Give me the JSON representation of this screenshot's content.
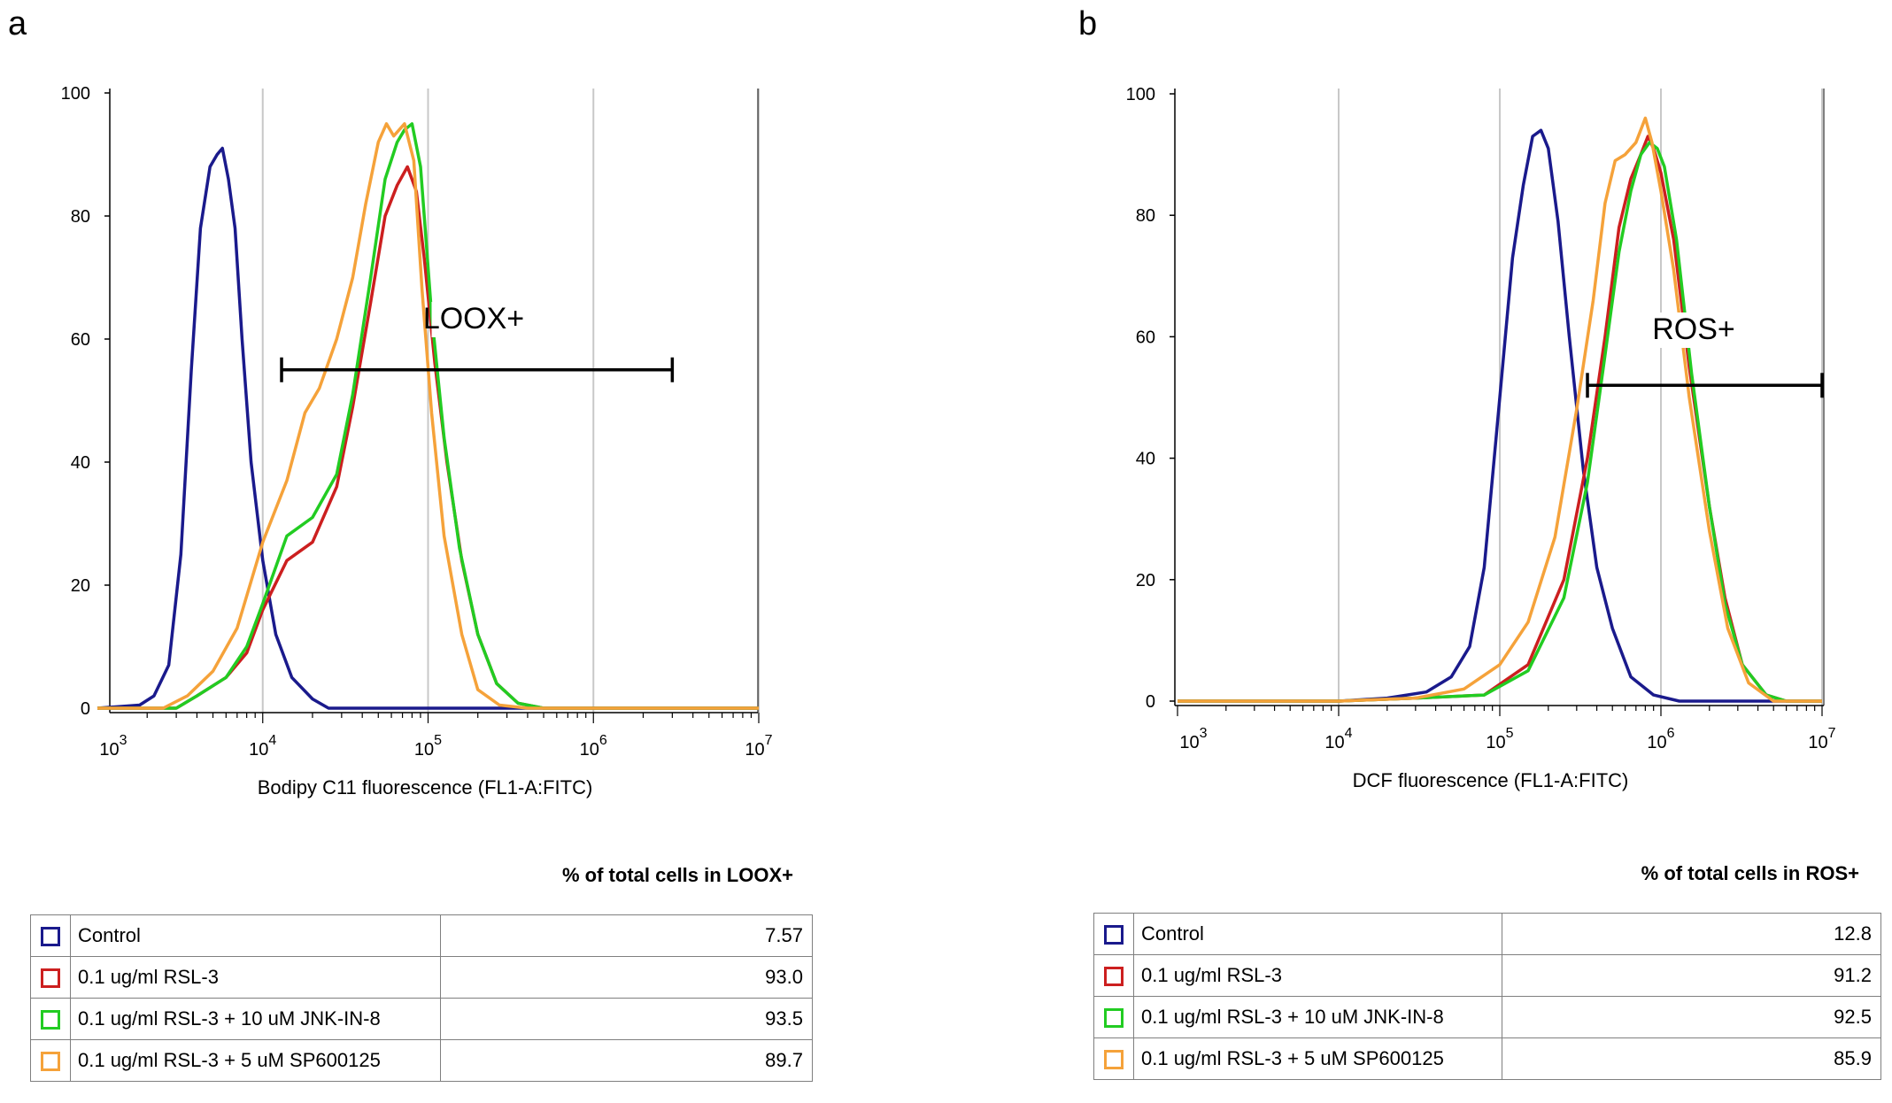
{
  "chart_data": [
    {
      "panel": "a",
      "type": "line",
      "xlabel": "Bodipy C11 fluorescence  (FL1-A:FITC)",
      "ylabel": "",
      "xscale": "log",
      "xlim": [
        1000,
        10000000
      ],
      "ylim": [
        0,
        100
      ],
      "yticks": [
        "0",
        "20",
        "40",
        "60",
        "80",
        "100"
      ],
      "xticks": [
        {
          "base": "10",
          "exp": "3"
        },
        {
          "base": "10",
          "exp": "4"
        },
        {
          "base": "10",
          "exp": "5"
        },
        {
          "base": "10",
          "exp": "6"
        },
        {
          "base": "10",
          "exp": "7"
        }
      ],
      "gate": {
        "label": "LOOX+",
        "from": 13000,
        "to": 3000000,
        "y": 55
      },
      "table_title": "% of total cells in LOOX+",
      "series": [
        {
          "name": "Control",
          "color": "#1a1a8c",
          "value": "7.57",
          "points": [
            [
              1000,
              0
            ],
            [
              1800,
              0.5
            ],
            [
              2200,
              2
            ],
            [
              2700,
              7
            ],
            [
              3200,
              25
            ],
            [
              3700,
              55
            ],
            [
              4200,
              78
            ],
            [
              4800,
              88
            ],
            [
              5300,
              90
            ],
            [
              5700,
              91
            ],
            [
              6200,
              86
            ],
            [
              6800,
              78
            ],
            [
              7500,
              60
            ],
            [
              8500,
              40
            ],
            [
              10000,
              24
            ],
            [
              12000,
              12
            ],
            [
              15000,
              5
            ],
            [
              20000,
              1.5
            ],
            [
              25000,
              0
            ],
            [
              10000000,
              0
            ]
          ]
        },
        {
          "name": "0.1 ug/ml RSL-3",
          "color": "#cc1f1f",
          "value": "93.0",
          "points": [
            [
              1000,
              0
            ],
            [
              3000,
              0
            ],
            [
              4000,
              2
            ],
            [
              6000,
              5
            ],
            [
              8000,
              9
            ],
            [
              10000,
              16
            ],
            [
              14000,
              24
            ],
            [
              20000,
              27
            ],
            [
              28000,
              36
            ],
            [
              35000,
              49
            ],
            [
              45000,
              66
            ],
            [
              55000,
              80
            ],
            [
              65000,
              85
            ],
            [
              75000,
              88
            ],
            [
              85000,
              84
            ],
            [
              95000,
              73
            ],
            [
              110000,
              56
            ],
            [
              130000,
              40
            ],
            [
              160000,
              24
            ],
            [
              200000,
              12
            ],
            [
              260000,
              4
            ],
            [
              350000,
              0.8
            ],
            [
              500000,
              0
            ],
            [
              10000000,
              0
            ]
          ]
        },
        {
          "name": "0.1 ug/ml RSL-3 + 10 uM JNK-IN-8",
          "color": "#22cc22",
          "value": "93.5",
          "points": [
            [
              1000,
              0
            ],
            [
              3000,
              0
            ],
            [
              4000,
              2
            ],
            [
              6000,
              5
            ],
            [
              8000,
              10
            ],
            [
              10000,
              17
            ],
            [
              14000,
              28
            ],
            [
              20000,
              31
            ],
            [
              28000,
              38
            ],
            [
              35000,
              51
            ],
            [
              45000,
              70
            ],
            [
              55000,
              86
            ],
            [
              65000,
              92
            ],
            [
              72000,
              94
            ],
            [
              80000,
              95
            ],
            [
              90000,
              88
            ],
            [
              105000,
              64
            ],
            [
              125000,
              44
            ],
            [
              155000,
              26
            ],
            [
              200000,
              12
            ],
            [
              260000,
              4
            ],
            [
              350000,
              0.8
            ],
            [
              500000,
              0
            ],
            [
              10000000,
              0
            ]
          ]
        },
        {
          "name": "0.1 ug/ml RSL-3 + 5 uM SP600125",
          "color": "#f5a23a",
          "value": "89.7",
          "points": [
            [
              1000,
              0
            ],
            [
              2500,
              0
            ],
            [
              3500,
              2
            ],
            [
              5000,
              6
            ],
            [
              7000,
              13
            ],
            [
              10000,
              27
            ],
            [
              14000,
              37
            ],
            [
              18000,
              48
            ],
            [
              22000,
              52
            ],
            [
              28000,
              60
            ],
            [
              35000,
              70
            ],
            [
              42000,
              82
            ],
            [
              50000,
              92
            ],
            [
              56000,
              95
            ],
            [
              62000,
              93
            ],
            [
              72000,
              95
            ],
            [
              82000,
              89
            ],
            [
              92000,
              68
            ],
            [
              105000,
              48
            ],
            [
              125000,
              28
            ],
            [
              160000,
              12
            ],
            [
              200000,
              3
            ],
            [
              270000,
              0.5
            ],
            [
              400000,
              0
            ],
            [
              10000000,
              0
            ]
          ]
        }
      ]
    },
    {
      "panel": "b",
      "type": "line",
      "xlabel": "DCF fluorescence (FL1-A:FITC)",
      "ylabel": "",
      "xscale": "log",
      "xlim": [
        1000,
        10000000
      ],
      "ylim": [
        0,
        100
      ],
      "yticks": [
        "0",
        "20",
        "40",
        "60",
        "80",
        "100"
      ],
      "xticks": [
        {
          "base": "10",
          "exp": "3"
        },
        {
          "base": "10",
          "exp": "4"
        },
        {
          "base": "10",
          "exp": "5"
        },
        {
          "base": "10",
          "exp": "6"
        },
        {
          "base": "10",
          "exp": "7"
        }
      ],
      "gate": {
        "label": "ROS+",
        "from": 350000,
        "to": 10000000,
        "y": 52
      },
      "table_title": "% of total cells in ROS+",
      "series": [
        {
          "name": "Control",
          "color": "#1a1a8c",
          "value": "12.8",
          "points": [
            [
              1000,
              0
            ],
            [
              10000,
              0
            ],
            [
              20000,
              0.5
            ],
            [
              35000,
              1.5
            ],
            [
              50000,
              4
            ],
            [
              65000,
              9
            ],
            [
              80000,
              22
            ],
            [
              100000,
              50
            ],
            [
              120000,
              73
            ],
            [
              140000,
              85
            ],
            [
              160000,
              93
            ],
            [
              180000,
              94
            ],
            [
              200000,
              91
            ],
            [
              230000,
              79
            ],
            [
              270000,
              60
            ],
            [
              330000,
              38
            ],
            [
              400000,
              22
            ],
            [
              500000,
              12
            ],
            [
              650000,
              4
            ],
            [
              900000,
              1
            ],
            [
              1300000,
              0
            ],
            [
              10000000,
              0
            ]
          ]
        },
        {
          "name": "0.1 ug/ml RSL-3",
          "color": "#cc1f1f",
          "value": "91.2",
          "points": [
            [
              1000,
              0
            ],
            [
              10000,
              0
            ],
            [
              30000,
              0.5
            ],
            [
              80000,
              1
            ],
            [
              150000,
              6
            ],
            [
              250000,
              20
            ],
            [
              350000,
              40
            ],
            [
              450000,
              60
            ],
            [
              550000,
              78
            ],
            [
              650000,
              86
            ],
            [
              750000,
              90
            ],
            [
              830000,
              93
            ],
            [
              900000,
              91
            ],
            [
              1000000,
              87
            ],
            [
              1200000,
              76
            ],
            [
              1500000,
              55
            ],
            [
              2000000,
              32
            ],
            [
              2500000,
              17
            ],
            [
              3200000,
              6
            ],
            [
              4500000,
              1
            ],
            [
              6000000,
              0
            ],
            [
              10000000,
              0
            ]
          ]
        },
        {
          "name": "0.1 ug/ml RSL-3 + 10 uM JNK-IN-8",
          "color": "#22cc22",
          "value": "92.5",
          "points": [
            [
              1000,
              0
            ],
            [
              10000,
              0
            ],
            [
              30000,
              0.5
            ],
            [
              80000,
              1
            ],
            [
              150000,
              5
            ],
            [
              250000,
              17
            ],
            [
              350000,
              36
            ],
            [
              450000,
              57
            ],
            [
              550000,
              74
            ],
            [
              650000,
              84
            ],
            [
              750000,
              90
            ],
            [
              850000,
              92
            ],
            [
              950000,
              91
            ],
            [
              1050000,
              88
            ],
            [
              1250000,
              76
            ],
            [
              1550000,
              54
            ],
            [
              2000000,
              32
            ],
            [
              2500000,
              16
            ],
            [
              3200000,
              6
            ],
            [
              4500000,
              1
            ],
            [
              6000000,
              0
            ],
            [
              10000000,
              0
            ]
          ]
        },
        {
          "name": "0.1 ug/ml RSL-3 + 5 uM SP600125",
          "color": "#f5a23a",
          "value": "85.9",
          "points": [
            [
              1000,
              0
            ],
            [
              10000,
              0
            ],
            [
              30000,
              0.5
            ],
            [
              60000,
              2
            ],
            [
              100000,
              6
            ],
            [
              150000,
              13
            ],
            [
              220000,
              27
            ],
            [
              300000,
              48
            ],
            [
              380000,
              66
            ],
            [
              450000,
              82
            ],
            [
              520000,
              89
            ],
            [
              600000,
              90
            ],
            [
              700000,
              92
            ],
            [
              800000,
              96
            ],
            [
              880000,
              92
            ],
            [
              1000000,
              84
            ],
            [
              1200000,
              71
            ],
            [
              1500000,
              50
            ],
            [
              2000000,
              28
            ],
            [
              2600000,
              12
            ],
            [
              3500000,
              3
            ],
            [
              5000000,
              0
            ],
            [
              10000000,
              0
            ]
          ]
        }
      ]
    }
  ]
}
